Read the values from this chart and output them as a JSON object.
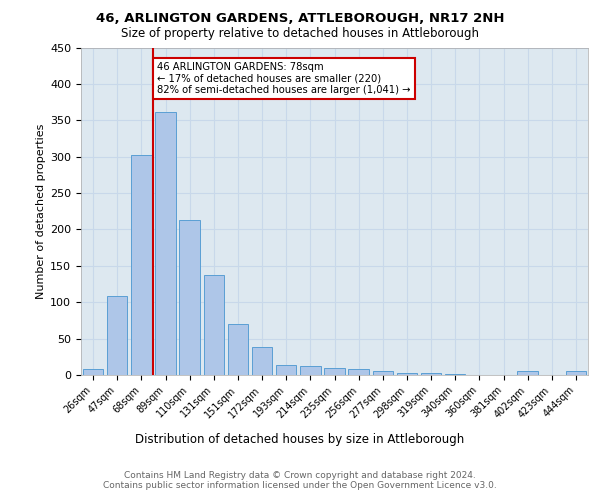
{
  "title1": "46, ARLINGTON GARDENS, ATTLEBOROUGH, NR17 2NH",
  "title2": "Size of property relative to detached houses in Attleborough",
  "xlabel": "Distribution of detached houses by size in Attleborough",
  "ylabel": "Number of detached properties",
  "footer": "Contains HM Land Registry data © Crown copyright and database right 2024.\nContains public sector information licensed under the Open Government Licence v3.0.",
  "bar_labels": [
    "26sqm",
    "47sqm",
    "68sqm",
    "89sqm",
    "110sqm",
    "131sqm",
    "151sqm",
    "172sqm",
    "193sqm",
    "214sqm",
    "235sqm",
    "256sqm",
    "277sqm",
    "298sqm",
    "319sqm",
    "340sqm",
    "360sqm",
    "381sqm",
    "402sqm",
    "423sqm",
    "444sqm"
  ],
  "bar_values": [
    8,
    108,
    302,
    362,
    213,
    137,
    70,
    39,
    14,
    13,
    10,
    8,
    5,
    3,
    3,
    2,
    0,
    0,
    5,
    0,
    5
  ],
  "bar_color": "#aec6e8",
  "bar_edge_color": "#5a9fd4",
  "grid_color": "#c8d8ea",
  "background_color": "#dde8f0",
  "annotation_text": "46 ARLINGTON GARDENS: 78sqm\n← 17% of detached houses are smaller (220)\n82% of semi-detached houses are larger (1,041) →",
  "annotation_box_color": "#ffffff",
  "annotation_box_edge": "#cc0000",
  "vline_color": "#cc0000",
  "ylim": [
    0,
    450
  ],
  "yticks": [
    0,
    50,
    100,
    150,
    200,
    250,
    300,
    350,
    400,
    450
  ],
  "title1_fontsize": 9.5,
  "title2_fontsize": 8.5,
  "ylabel_fontsize": 8,
  "xtick_fontsize": 7,
  "ytick_fontsize": 8,
  "xlabel_fontsize": 8.5,
  "footer_fontsize": 6.5
}
